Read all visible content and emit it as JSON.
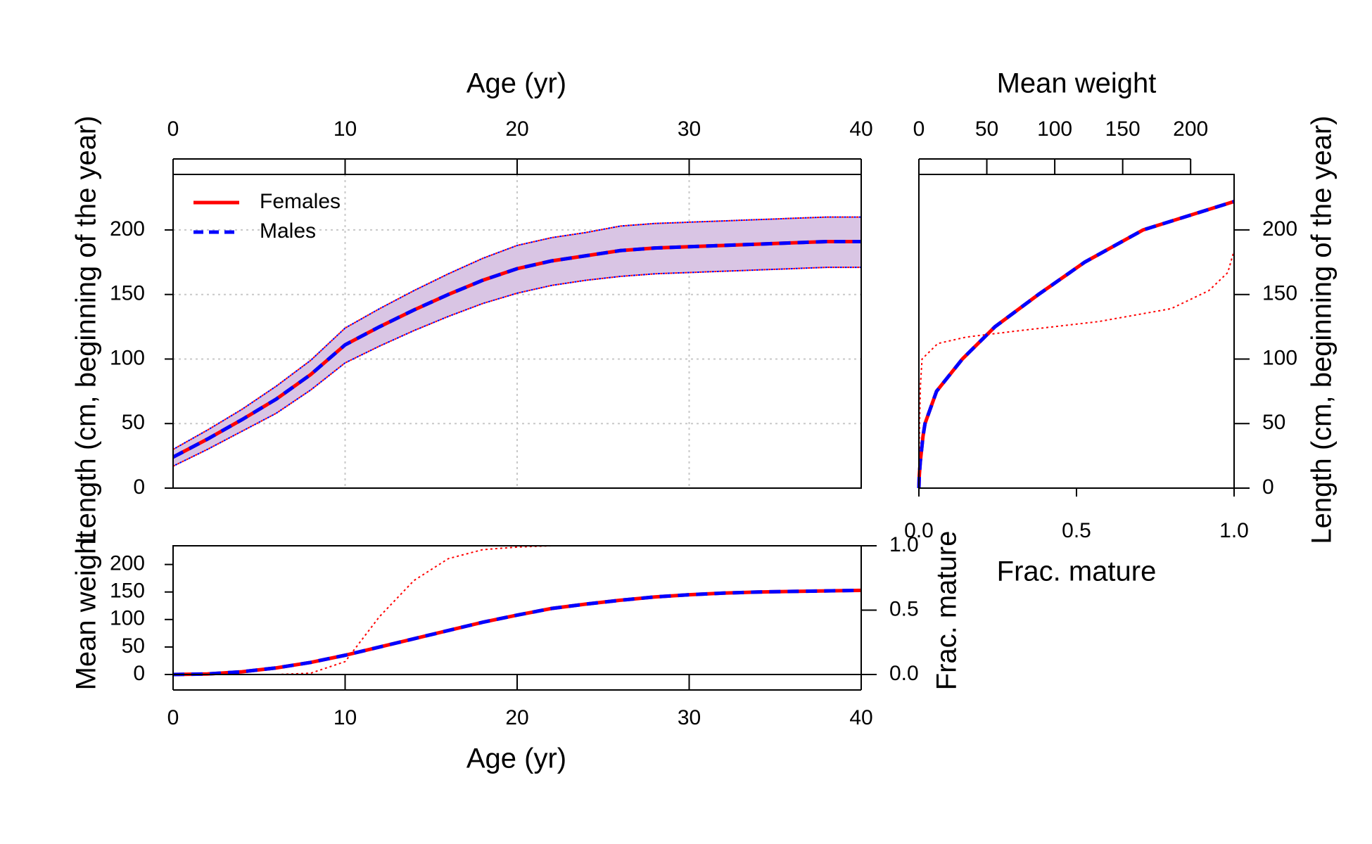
{
  "chart_data": [
    {
      "type": "line",
      "x_label": "Age (yr)",
      "y_label": "Length (cm, beginning of the year)",
      "x": [
        0,
        2,
        4,
        6,
        8,
        10,
        12,
        14,
        16,
        18,
        20,
        22,
        24,
        26,
        28,
        30,
        32,
        34,
        36,
        38,
        40
      ],
      "xlim": [
        0,
        40
      ],
      "xticks": [
        0,
        10,
        20,
        30,
        40
      ],
      "ylim": [
        0,
        243
      ],
      "yticks": [
        0,
        50,
        100,
        150,
        200
      ],
      "grid": true,
      "legend": "top-left",
      "band": {
        "color": "#d9c5e4",
        "upper": [
          30,
          45,
          61,
          79,
          99,
          124,
          139,
          153,
          166,
          178,
          188,
          194,
          198,
          203,
          205,
          206,
          207,
          208,
          209,
          210,
          210
        ],
        "lower": [
          17,
          30,
          44,
          58,
          76,
          97,
          110,
          122,
          133,
          143,
          151,
          157,
          161,
          164,
          166,
          167,
          168,
          169,
          170,
          171,
          171
        ]
      },
      "series": [
        {
          "name": "Females",
          "color": "#ff0000",
          "style": "solid",
          "values": [
            24,
            38,
            53,
            69,
            88,
            111,
            125,
            138,
            150,
            161,
            170,
            176,
            180,
            184,
            186,
            187,
            188,
            189,
            190,
            191,
            191
          ]
        },
        {
          "name": "Males",
          "color": "#0000ff",
          "style": "dashed",
          "values": [
            24,
            38,
            53,
            69,
            88,
            111,
            125,
            138,
            150,
            161,
            170,
            176,
            180,
            184,
            186,
            187,
            188,
            189,
            190,
            191,
            191
          ]
        }
      ]
    },
    {
      "type": "line-horizontal",
      "x_label": "Mean weight",
      "x2_label": "Frac. mature",
      "y_label": "Length (cm, beginning of the year)",
      "xlim": [
        0,
        232
      ],
      "xticks": [
        0,
        50,
        100,
        150,
        200
      ],
      "x2lim": [
        0,
        1
      ],
      "x2ticks": [
        {
          "value": 0,
          "label": "0.0"
        },
        {
          "value": 0.5,
          "label": "0.5"
        },
        {
          "value": 1,
          "label": "1.0"
        }
      ],
      "ylim": [
        0,
        243
      ],
      "yticks": [
        0,
        50,
        100,
        150,
        200
      ],
      "series": [
        {
          "color": "#ff0000",
          "style": "solid",
          "y": [
            0,
            10,
            20,
            30,
            40,
            50,
            75,
            100,
            125,
            150,
            175,
            200,
            222
          ],
          "values": [
            0,
            0.3,
            1,
            2,
            3,
            4.5,
            13,
            32,
            56,
            88,
            122,
            165,
            232
          ]
        },
        {
          "color": "#0000ff",
          "style": "dashed",
          "y": [
            0,
            10,
            20,
            30,
            40,
            50,
            75,
            100,
            125,
            150,
            175,
            200,
            222
          ],
          "values": [
            0,
            0.3,
            1,
            2,
            3,
            4.5,
            13,
            32,
            56,
            88,
            122,
            165,
            232
          ]
        },
        {
          "color": "#ff0000",
          "style": "dotted",
          "axis": "x2",
          "y": [
            0,
            50,
            80,
            100,
            112,
            117,
            122,
            129,
            139,
            153,
            167,
            184
          ],
          "values": [
            0,
            0.002,
            0.005,
            0.01,
            0.06,
            0.15,
            0.32,
            0.57,
            0.8,
            0.92,
            0.98,
            1
          ]
        }
      ]
    },
    {
      "type": "line",
      "x_label": "Age (yr)",
      "y_label": "Mean weight",
      "y2_label": "Frac. mature",
      "x": [
        0,
        2,
        4,
        6,
        8,
        10,
        12,
        14,
        16,
        18,
        20,
        22,
        24,
        26,
        28,
        30,
        32,
        34,
        36,
        38,
        40
      ],
      "xlim": [
        0,
        40
      ],
      "xticks": [
        0,
        10,
        20,
        30,
        40
      ],
      "ylim": [
        0,
        234
      ],
      "yticks": [
        0,
        50,
        100,
        150,
        200
      ],
      "y2lim": [
        0,
        1
      ],
      "y2ticks": [
        {
          "value": 0,
          "label": "0.0"
        },
        {
          "value": 0.5,
          "label": "0.5"
        },
        {
          "value": 1,
          "label": "1.0"
        }
      ],
      "series": [
        {
          "color": "#ff0000",
          "style": "solid",
          "values": [
            0,
            1,
            5,
            12,
            22,
            35,
            50,
            65,
            80,
            95,
            108,
            120,
            128,
            135,
            141,
            145,
            148,
            150,
            151,
            152,
            153
          ]
        },
        {
          "color": "#0000ff",
          "style": "dashed",
          "values": [
            0,
            1,
            5,
            12,
            22,
            35,
            50,
            65,
            80,
            95,
            108,
            120,
            128,
            135,
            141,
            145,
            148,
            150,
            151,
            152,
            153
          ]
        },
        {
          "color": "#ff0000",
          "style": "dotted",
          "axis": "y2",
          "values": [
            0,
            0,
            0,
            0,
            0.01,
            0.1,
            0.45,
            0.73,
            0.9,
            0.97,
            0.99,
            1,
            1,
            1,
            1,
            1,
            1,
            1,
            1,
            1,
            1
          ]
        }
      ]
    }
  ]
}
